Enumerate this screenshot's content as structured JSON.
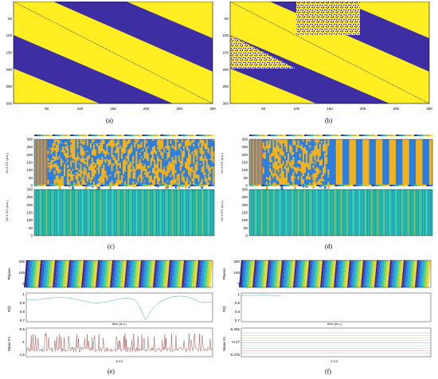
{
  "captions": {
    "a": "(a)",
    "b": "(b)",
    "c": "(c)",
    "d": "(d)",
    "e": "(e)",
    "f": "(f)"
  },
  "matrix": {
    "x_ticks": [
      "50",
      "100",
      "150",
      "200",
      "250",
      "300"
    ],
    "y_ticks": [
      "50",
      "100",
      "150",
      "200",
      "250",
      "300"
    ],
    "colors": {
      "yellow": "#ffee22",
      "blue": "#3d2ea4"
    }
  },
  "cc": {
    "x1_label": "X1 # CC (a.u.)",
    "x2_label": "X2 # CC (a.u.)",
    "y_ticks": [
      "300",
      "250",
      "200",
      "150",
      "100",
      "50",
      "0"
    ],
    "colors": {
      "blue": "#2a7fe0",
      "orange": "#f2b21e",
      "teal": "#27c2b0"
    }
  },
  "bottom": {
    "phases_label": "Phases",
    "r_label": "R(t)",
    "time_label": "time (a.u.)",
    "smax_label": "Smax-X1",
    "cc_label": "# CC",
    "e": {
      "phase_ticks": [
        "200",
        "100",
        "0"
      ],
      "r_ticks": [
        "1",
        "0.9",
        "0.8",
        "0.7"
      ],
      "s_ticks": [
        "-0.5",
        "-1",
        "-1.5"
      ]
    },
    "f": {
      "phase_ticks": [
        "200",
        "100",
        "0"
      ],
      "r_ticks": [
        "1",
        "0.9",
        "0.8",
        "0.7"
      ],
      "s_ticks": [
        "-0.265",
        "-0.27",
        "-0.275"
      ]
    }
  }
}
